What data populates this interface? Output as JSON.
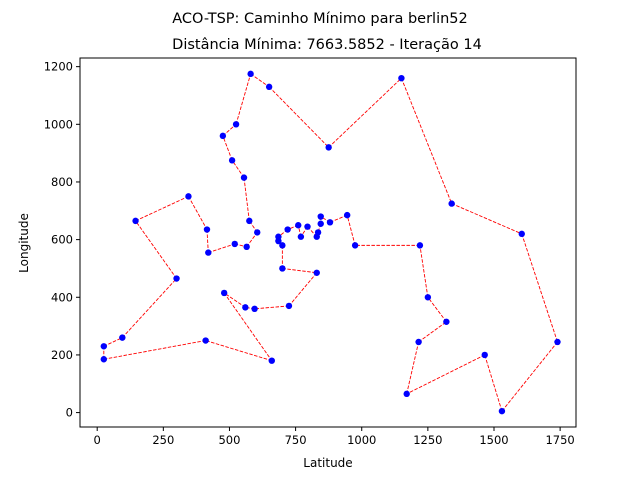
{
  "chart_data": {
    "type": "line",
    "title": "ACO-TSP: Caminho Mínimo para berlin52",
    "subtitle": "Distância Mínima: 7663.5852 - Iteração 14",
    "xlabel": "Latitude",
    "ylabel": "Longitude",
    "xlim": [
      -65,
      1810
    ],
    "ylim": [
      -50,
      1230
    ],
    "xticks": [
      0,
      250,
      500,
      750,
      1000,
      1250,
      1500,
      1750
    ],
    "yticks": [
      0,
      200,
      400,
      600,
      800,
      1000,
      1200
    ],
    "grid": false,
    "line_color": "#ff0000",
    "point_color": "#0000ff",
    "route": [
      [
        565,
        575
      ],
      [
        25,
        185
      ],
      [
        345,
        750
      ],
      [
        945,
        685
      ],
      [
        845,
        655
      ],
      [
        880,
        660
      ],
      [
        25,
        230
      ],
      [
        525,
        1000
      ],
      [
        580,
        1175
      ],
      [
        650,
        1130
      ],
      [
        1605,
        620
      ],
      [
        1220,
        580
      ],
      [
        1465,
        200
      ],
      [
        1530,
        5
      ],
      [
        845,
        680
      ],
      [
        725,
        370
      ],
      [
        145,
        665
      ],
      [
        415,
        635
      ],
      [
        510,
        875
      ],
      [
        560,
        365
      ],
      [
        300,
        465
      ],
      [
        520,
        585
      ],
      [
        480,
        415
      ],
      [
        835,
        625
      ],
      [
        975,
        580
      ],
      [
        1215,
        245
      ],
      [
        1320,
        315
      ],
      [
        1250,
        400
      ],
      [
        660,
        180
      ],
      [
        410,
        250
      ],
      [
        420,
        555
      ],
      [
        575,
        665
      ],
      [
        1150,
        1160
      ],
      [
        700,
        580
      ],
      [
        685,
        595
      ],
      [
        685,
        610
      ],
      [
        770,
        610
      ],
      [
        795,
        645
      ],
      [
        720,
        635
      ],
      [
        760,
        650
      ],
      [
        475,
        960
      ],
      [
        95,
        260
      ],
      [
        875,
        920
      ],
      [
        700,
        500
      ],
      [
        555,
        815
      ],
      [
        830,
        485
      ],
      [
        1170,
        65
      ],
      [
        830,
        610
      ],
      [
        605,
        625
      ],
      [
        595,
        360
      ],
      [
        1340,
        725
      ],
      [
        1740,
        245
      ]
    ],
    "tour_order": [
      0,
      48,
      31,
      44,
      18,
      40,
      7,
      8,
      9,
      42,
      32,
      50,
      10,
      51,
      13,
      12,
      46,
      25,
      26,
      27,
      11,
      24,
      3,
      5,
      14,
      4,
      23,
      47,
      37,
      36,
      39,
      38,
      35,
      34,
      33,
      43,
      45,
      15,
      49,
      19,
      22,
      28,
      29,
      1,
      6,
      41,
      20,
      16,
      2,
      17,
      30,
      21,
      0
    ]
  }
}
